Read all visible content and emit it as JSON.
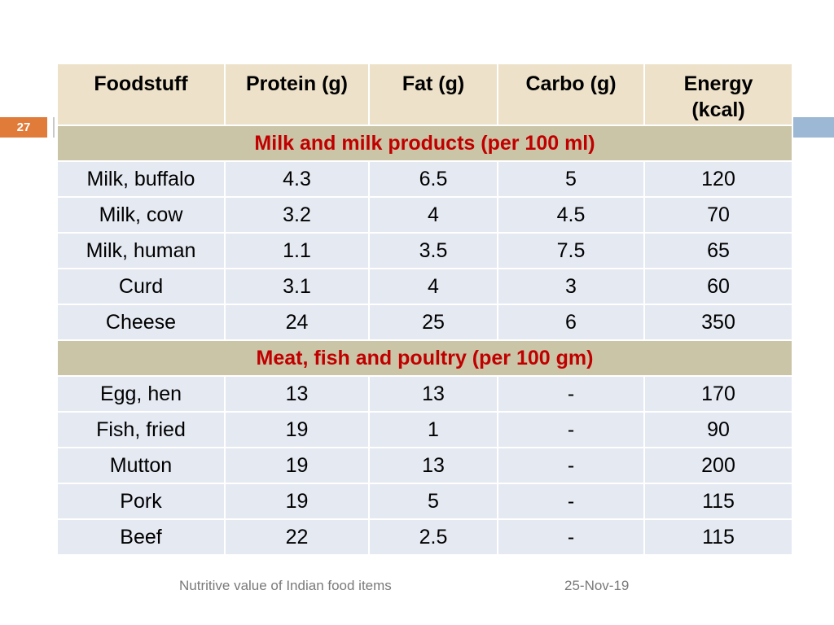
{
  "slide_number": "27",
  "table": {
    "headers": [
      "Foodstuff",
      "Protein (g)",
      "Fat (g)",
      "Carbo (g)",
      "Energy (kcal)"
    ],
    "sections": [
      {
        "title": "Milk and milk products (per 100 ml)",
        "rows": [
          [
            "Milk, buffalo",
            "4.3",
            "6.5",
            "5",
            "120"
          ],
          [
            "Milk, cow",
            "3.2",
            "4",
            "4.5",
            "70"
          ],
          [
            "Milk, human",
            "1.1",
            "3.5",
            "7.5",
            "65"
          ],
          [
            "Curd",
            "3.1",
            "4",
            "3",
            "60"
          ],
          [
            "Cheese",
            "24",
            "25",
            "6",
            "350"
          ]
        ]
      },
      {
        "title": "Meat, fish and poultry (per 100 gm)",
        "rows": [
          [
            "Egg, hen",
            "13",
            "13",
            "-",
            "170"
          ],
          [
            "Fish, fried",
            "19",
            "1",
            "-",
            "90"
          ],
          [
            "Mutton",
            "19",
            "13",
            "-",
            "200"
          ],
          [
            "Pork",
            "19",
            "5",
            "-",
            "115"
          ],
          [
            "Beef",
            "22",
            "2.5",
            "-",
            "115"
          ]
        ]
      }
    ]
  },
  "footer": {
    "left": "Nutritive value of Indian food items",
    "right": "25-Nov-19"
  },
  "colors": {
    "header_bg": "#ede1c9",
    "section_bg": "#cbc5a7",
    "section_text": "#c00000",
    "row_bg": "#e5e9f2",
    "slide_number_bg": "#e07b39",
    "accent_bar": "#9cb8d4"
  }
}
